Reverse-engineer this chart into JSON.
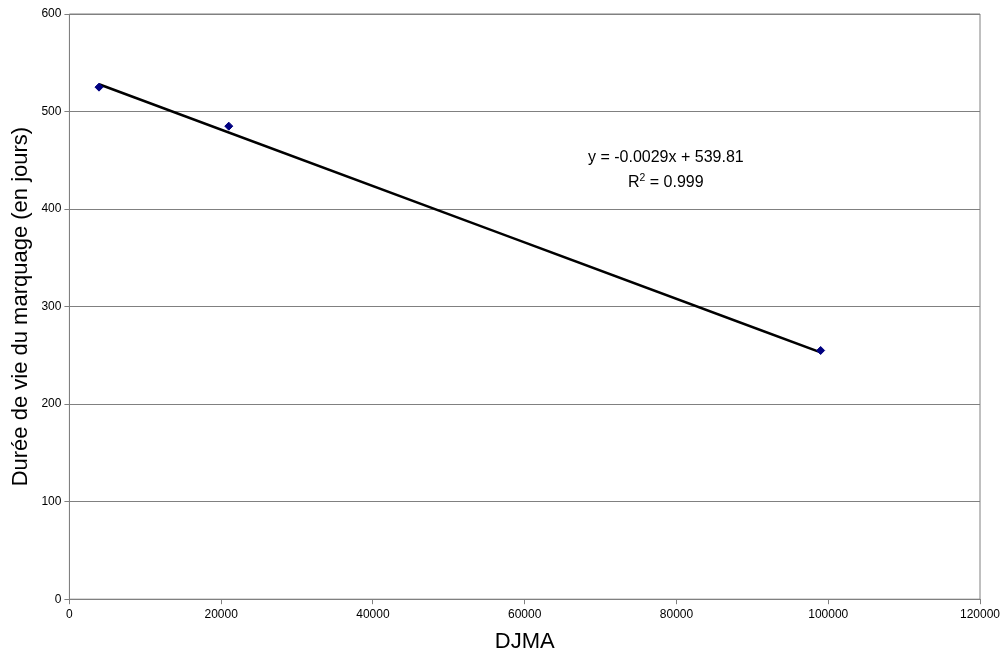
{
  "chart_data": {
    "type": "scatter",
    "xlabel": "DJMA",
    "ylabel": "Durée de vie du marquage (en jours)",
    "x": [
      3900,
      21000,
      99000
    ],
    "series": [
      {
        "type": "scatter",
        "color": "#000080",
        "values": [
          525,
          485,
          255
        ],
        "marker": "diamond"
      },
      {
        "type": "line",
        "color": "#000000",
        "x": [
          3900,
          99000
        ],
        "values": [
          528,
          253
        ],
        "marker": "none",
        "line_style": "solid"
      }
    ],
    "xlim": [
      0,
      120000
    ],
    "xticks": [
      0,
      20000,
      40000,
      60000,
      80000,
      100000,
      120000
    ],
    "ylim": [
      0,
      600
    ],
    "yticks": [
      0,
      100,
      200,
      300,
      400,
      500,
      600
    ],
    "grid": "y",
    "legend": false,
    "annotations": [
      "y = -0.0029x + 539.81",
      "R$^{2}$ = 0.999"
    ]
  }
}
